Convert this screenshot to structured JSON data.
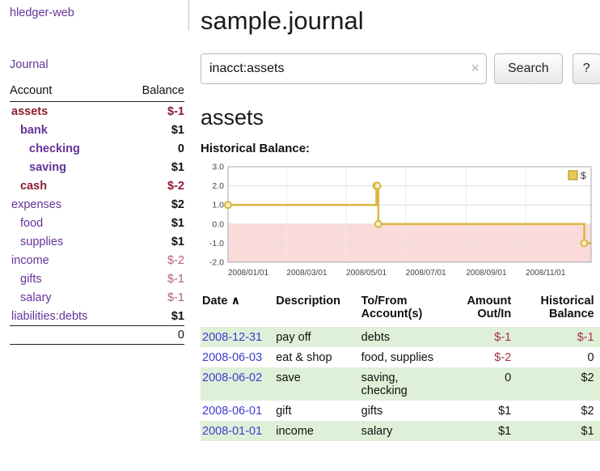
{
  "app": {
    "title": "hledger-web"
  },
  "sidebar": {
    "journal_link": "Journal",
    "header": {
      "account": "Account",
      "balance": "Balance"
    },
    "accounts": [
      {
        "name": "assets",
        "balance": "$-1",
        "depth": 0,
        "bold": true,
        "name_negative": true,
        "balance_negative": true
      },
      {
        "name": "bank",
        "balance": "$1",
        "depth": 1,
        "bold": true,
        "name_negative": false,
        "balance_negative": false
      },
      {
        "name": "checking",
        "balance": "0",
        "depth": 2,
        "bold": true,
        "name_negative": false,
        "balance_negative": false
      },
      {
        "name": "saving",
        "balance": "$1",
        "depth": 2,
        "bold": true,
        "name_negative": false,
        "balance_negative": false
      },
      {
        "name": "cash",
        "balance": "$-2",
        "depth": 1,
        "bold": true,
        "name_negative": true,
        "balance_negative": true
      },
      {
        "name": "expenses",
        "balance": "$2",
        "depth": 0,
        "bold": false,
        "name_negative": false,
        "balance_negative": false
      },
      {
        "name": "food",
        "balance": "$1",
        "depth": 1,
        "bold": false,
        "name_negative": false,
        "balance_negative": false
      },
      {
        "name": "supplies",
        "balance": "$1",
        "depth": 1,
        "bold": false,
        "name_negative": false,
        "balance_negative": false
      },
      {
        "name": "income",
        "balance": "$-2",
        "depth": 0,
        "bold": false,
        "name_negative": false,
        "balance_negative": true
      },
      {
        "name": "gifts",
        "balance": "$-1",
        "depth": 1,
        "bold": false,
        "name_negative": false,
        "balance_negative": true
      },
      {
        "name": "salary",
        "balance": "$-1",
        "depth": 1,
        "bold": false,
        "name_negative": false,
        "balance_negative": true
      },
      {
        "name": "liabilities:debts",
        "balance": "$1",
        "depth": 0,
        "bold": false,
        "name_negative": false,
        "balance_negative": false
      }
    ],
    "total": "0"
  },
  "main": {
    "title": "sample.journal",
    "search": {
      "value": "inacct:assets",
      "clear_icon": "×",
      "search_button": "Search",
      "help_button": "?"
    },
    "account_heading": "assets",
    "chart_heading": "Historical Balance:"
  },
  "chart_data": {
    "type": "line",
    "step": true,
    "title": "Historical Balance",
    "ylim": [
      -2,
      3
    ],
    "yticks": [
      3,
      2,
      1,
      0,
      -1,
      -2
    ],
    "xlim_days": [
      0,
      372
    ],
    "xticks": [
      {
        "label": "2008/01/01",
        "day": 0
      },
      {
        "label": "2008/03/01",
        "day": 60
      },
      {
        "label": "2008/05/01",
        "day": 121
      },
      {
        "label": "2008/07/01",
        "day": 182
      },
      {
        "label": "2008/09/01",
        "day": 244
      },
      {
        "label": "2008/11/01",
        "day": 305
      }
    ],
    "series": [
      {
        "name": "$",
        "points": [
          {
            "x": "2008-01-01",
            "day": 0,
            "y": 1
          },
          {
            "x": "2008-06-01",
            "day": 152,
            "y": 2
          },
          {
            "x": "2008-06-02",
            "day": 153,
            "y": 2
          },
          {
            "x": "2008-06-03",
            "day": 154,
            "y": 0
          },
          {
            "x": "2008-12-31",
            "day": 365,
            "y": -1
          }
        ]
      }
    ],
    "legend": [
      {
        "label": "$",
        "color": "#e6c94f"
      }
    ],
    "negative_region": true,
    "colors": {
      "line": "#d9b73f",
      "marker_fill": "#f7edc6",
      "negative_region": "#fbdada",
      "legend_fill": "#e6c94f",
      "grid": "#dddddd",
      "border": "#aaaaaa"
    }
  },
  "register": {
    "columns": {
      "date": "Date",
      "description": "Description",
      "tofrom": "To/From Account(s)",
      "amount": "Amount Out/In",
      "balance": "Historical Balance"
    },
    "sort_icon": "∧",
    "rows": [
      {
        "date": "2008-12-31",
        "description": "pay off",
        "accounts": "debts",
        "amount": "$-1",
        "amount_negative": true,
        "balance": "$-1",
        "balance_negative": true
      },
      {
        "date": "2008-06-03",
        "description": "eat & shop",
        "accounts": "food, supplies",
        "amount": "$-2",
        "amount_negative": true,
        "balance": "0",
        "balance_negative": false
      },
      {
        "date": "2008-06-02",
        "description": "save",
        "accounts": "saving, checking",
        "amount": "0",
        "amount_negative": false,
        "balance": "$2",
        "balance_negative": false
      },
      {
        "date": "2008-06-01",
        "description": "gift",
        "accounts": "gifts",
        "amount": "$1",
        "amount_negative": false,
        "balance": "$2",
        "balance_negative": false
      },
      {
        "date": "2008-01-01",
        "description": "income",
        "accounts": "salary",
        "amount": "$1",
        "amount_negative": false,
        "balance": "$1",
        "balance_negative": false
      }
    ]
  },
  "colors": {
    "link_purple": "#663399",
    "date_link_blue": "#3b3bd1",
    "negative": "#b2607a",
    "negative_strong": "#8c1d33",
    "negative_amount": "#a5324a",
    "row_highlight_green": "#dff0d8"
  }
}
